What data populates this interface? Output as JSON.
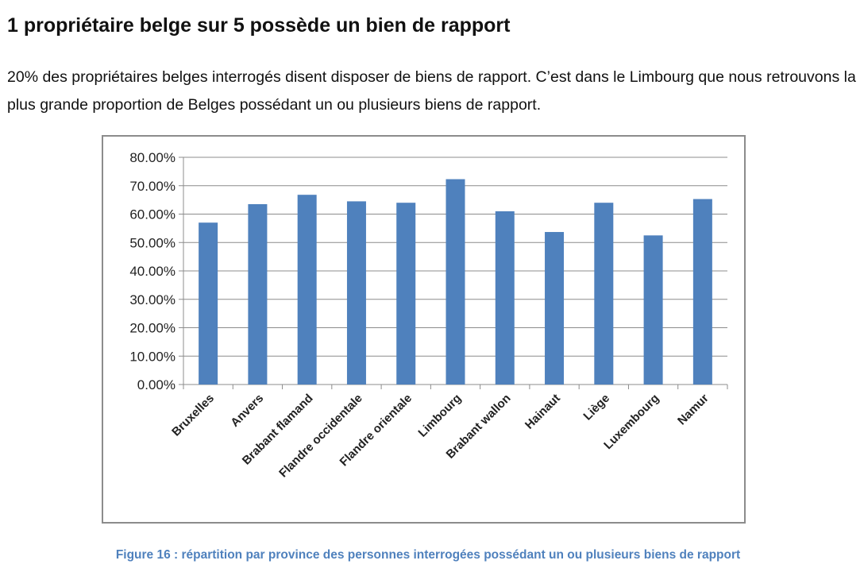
{
  "document": {
    "heading": "1 propriétaire belge sur 5 possède un bien de rapport",
    "intro": "20% des propriétaires belges interrogés disent disposer  de biens de rapport. C’est dans le Limbourg que nous retrouvons la plus grande proportion de Belges possédant un ou plusieurs biens de rapport.",
    "caption": "Figure 16 : répartition par province des personnes interrogées possédant un ou plusieurs biens de rapport"
  },
  "chart_data": {
    "type": "bar",
    "title": "",
    "xlabel": "",
    "ylabel": "",
    "categories": [
      "Bruxelles",
      "Anvers",
      "Brabant flamand",
      "Flandre occidentale",
      "Flandre orientale",
      "Limbourg",
      "Brabant wallon",
      "Hainaut",
      "Liège",
      "Luxembourg",
      "Namur"
    ],
    "values": [
      57.0,
      63.5,
      66.8,
      64.5,
      64.0,
      72.3,
      61.0,
      53.7,
      64.0,
      52.5,
      65.3
    ],
    "ylim": [
      0,
      80
    ],
    "ytick_values": [
      0,
      10,
      20,
      30,
      40,
      50,
      60,
      70,
      80
    ],
    "ytick_labels": [
      "0.00%",
      "10.00%",
      "20.00%",
      "30.00%",
      "40.00%",
      "50.00%",
      "60.00%",
      "70.00%",
      "80.00%"
    ],
    "grid": true,
    "legend": "none",
    "bar_color": "#4f81bd",
    "grid_color": "#8c8c8c"
  }
}
